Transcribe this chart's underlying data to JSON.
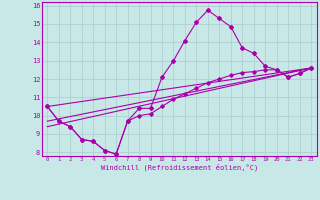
{
  "xlabel": "Windchill (Refroidissement éolien,°C)",
  "xlim": [
    -0.5,
    23.5
  ],
  "ylim": [
    7.8,
    16.2
  ],
  "xticks": [
    0,
    1,
    2,
    3,
    4,
    5,
    6,
    7,
    8,
    9,
    10,
    11,
    12,
    13,
    14,
    15,
    16,
    17,
    18,
    19,
    20,
    21,
    22,
    23
  ],
  "yticks": [
    8,
    9,
    10,
    11,
    12,
    13,
    14,
    15,
    16
  ],
  "bg_color": "#c8e8e8",
  "grid_color": "#aacccc",
  "line_color": "#aa00aa",
  "line1_x": [
    0,
    1,
    2,
    3,
    4,
    5,
    6,
    7,
    8,
    9,
    10,
    11,
    12,
    13,
    14,
    15,
    16,
    17,
    18,
    19,
    20,
    21,
    22,
    23
  ],
  "line1_y": [
    10.5,
    9.7,
    9.4,
    8.7,
    8.6,
    8.1,
    7.9,
    9.7,
    10.4,
    10.4,
    12.1,
    13.0,
    14.1,
    15.1,
    15.75,
    15.3,
    14.85,
    13.7,
    13.4,
    12.7,
    12.5,
    12.1,
    12.3,
    12.6
  ],
  "line2_x": [
    0,
    1,
    2,
    3,
    4,
    5,
    6,
    7,
    8,
    9,
    10,
    11,
    12,
    13,
    14,
    15,
    16,
    17,
    18,
    19,
    20,
    21,
    22,
    23
  ],
  "line2_y": [
    10.5,
    9.7,
    9.4,
    8.7,
    8.6,
    8.1,
    7.9,
    9.7,
    10.0,
    10.1,
    10.5,
    10.9,
    11.2,
    11.5,
    11.8,
    12.0,
    12.2,
    12.35,
    12.4,
    12.5,
    12.5,
    12.1,
    12.3,
    12.6
  ],
  "line3_y_start": 10.5,
  "line3_y_end": 12.6,
  "line4_y_start": 9.7,
  "line4_y_end": 12.6,
  "line5_y_start": 9.4,
  "line5_y_end": 12.6,
  "x_start": 0,
  "x_end": 23
}
